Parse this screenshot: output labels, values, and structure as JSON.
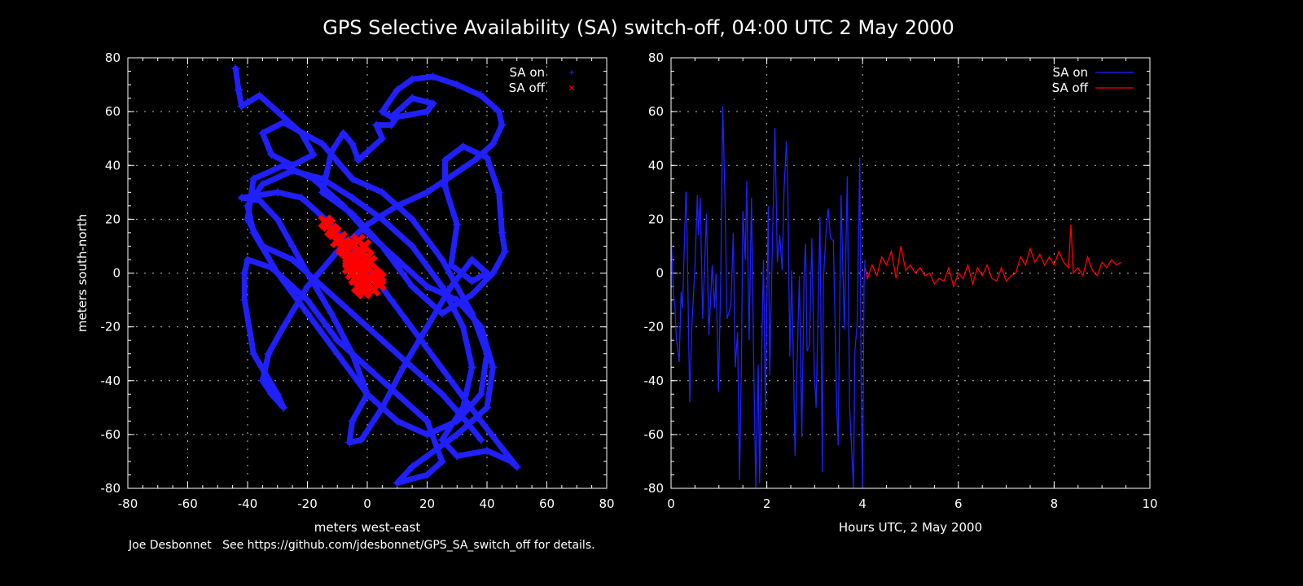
{
  "title": "GPS Selective Availability (SA) switch-off, 04:00 UTC 2 May 2000",
  "footer": "Joe Desbonnet   See https://github.com/jdesbonnet/GPS_SA_switch_off for details.",
  "colors": {
    "background": "#000000",
    "sa_on": "#2020ff",
    "sa_off": "#ff0000",
    "axes": "#ffffff"
  },
  "chart_data": [
    {
      "type": "scatter",
      "xlabel": "meters west-east",
      "ylabel": "meters south-north",
      "xlim": [
        -80,
        80
      ],
      "ylim": [
        -80,
        80
      ],
      "xticks": [
        -80,
        -60,
        -40,
        -20,
        0,
        20,
        40,
        60,
        80
      ],
      "yticks": [
        -80,
        -60,
        -40,
        -20,
        0,
        20,
        40,
        60,
        80
      ],
      "grid": true,
      "legend": "top-right",
      "series": [
        {
          "name": "SA on",
          "marker": "+",
          "color": "#2020ff",
          "points": [
            [
              -44,
              76
            ],
            [
              -43,
              68
            ],
            [
              -42,
              62
            ],
            [
              -36,
              66
            ],
            [
              -30,
              60
            ],
            [
              -22,
              52
            ],
            [
              -18,
              44
            ],
            [
              -25,
              40
            ],
            [
              -32,
              44
            ],
            [
              -35,
              52
            ],
            [
              -28,
              56
            ],
            [
              -15,
              48
            ],
            [
              -5,
              35
            ],
            [
              5,
              30
            ],
            [
              15,
              20
            ],
            [
              25,
              5
            ],
            [
              35,
              -15
            ],
            [
              40,
              -30
            ],
            [
              38,
              -45
            ],
            [
              30,
              -55
            ],
            [
              20,
              -60
            ],
            [
              10,
              -55
            ],
            [
              0,
              -45
            ],
            [
              -10,
              -30
            ],
            [
              -20,
              -15
            ],
            [
              -30,
              0
            ],
            [
              -38,
              15
            ],
            [
              -40,
              25
            ],
            [
              -35,
              33
            ],
            [
              -25,
              38
            ],
            [
              -15,
              35
            ],
            [
              -5,
              28
            ],
            [
              5,
              20
            ],
            [
              15,
              10
            ],
            [
              25,
              -5
            ],
            [
              32,
              -20
            ],
            [
              35,
              -35
            ],
            [
              32,
              -50
            ],
            [
              25,
              -62
            ],
            [
              30,
              -68
            ],
            [
              40,
              -66
            ],
            [
              48,
              -70
            ],
            [
              50,
              -72
            ],
            [
              45,
              -65
            ],
            [
              38,
              -55
            ],
            [
              28,
              -40
            ],
            [
              18,
              -25
            ],
            [
              8,
              -10
            ],
            [
              -2,
              5
            ],
            [
              -12,
              18
            ],
            [
              -22,
              28
            ],
            [
              -30,
              30
            ],
            [
              -42,
              28
            ],
            [
              -36,
              27
            ],
            [
              -30,
              20
            ],
            [
              -25,
              10
            ],
            [
              -20,
              0
            ],
            [
              -12,
              -15
            ],
            [
              -5,
              -30
            ],
            [
              0,
              -45
            ],
            [
              -5,
              -55
            ],
            [
              -6,
              -63
            ],
            [
              -2,
              -62
            ],
            [
              5,
              -50
            ],
            [
              12,
              -35
            ],
            [
              20,
              -20
            ],
            [
              28,
              -5
            ],
            [
              35,
              5
            ],
            [
              40,
              0
            ],
            [
              35,
              -3
            ],
            [
              28,
              3
            ],
            [
              30,
              18
            ],
            [
              26,
              32
            ],
            [
              26,
              42
            ],
            [
              32,
              47
            ],
            [
              40,
              43
            ],
            [
              44,
              30
            ],
            [
              45,
              15
            ],
            [
              46,
              8
            ],
            [
              42,
              0
            ],
            [
              35,
              -8
            ],
            [
              25,
              -15
            ],
            [
              15,
              -5
            ],
            [
              5,
              10
            ],
            [
              -5,
              22
            ],
            [
              -15,
              30
            ],
            [
              -12,
              45
            ],
            [
              -8,
              52
            ],
            [
              -5,
              48
            ],
            [
              -3,
              42
            ],
            [
              0,
              45
            ],
            [
              5,
              50
            ],
            [
              3,
              55
            ],
            [
              8,
              55
            ],
            [
              10,
              58
            ],
            [
              20,
              60
            ],
            [
              22,
              63
            ],
            [
              15,
              65
            ],
            [
              8,
              58
            ],
            [
              5,
              60
            ],
            [
              10,
              68
            ],
            [
              15,
              72
            ],
            [
              22,
              73
            ],
            [
              30,
              70
            ],
            [
              38,
              66
            ],
            [
              44,
              60
            ],
            [
              45,
              55
            ],
            [
              42,
              48
            ],
            [
              36,
              42
            ],
            [
              20,
              30
            ],
            [
              10,
              25
            ],
            [
              0,
              18
            ],
            [
              -10,
              8
            ],
            [
              -20,
              -5
            ],
            [
              -28,
              -20
            ],
            [
              -33,
              -30
            ],
            [
              -35,
              -40
            ],
            [
              -32,
              -45
            ],
            [
              -28,
              -50
            ],
            [
              -30,
              -45
            ],
            [
              -38,
              -30
            ],
            [
              -41,
              -10
            ],
            [
              -41,
              0
            ],
            [
              -40,
              5
            ],
            [
              -32,
              2
            ],
            [
              -20,
              -10
            ],
            [
              -10,
              -25
            ],
            [
              0,
              -35
            ],
            [
              10,
              -45
            ],
            [
              20,
              -55
            ],
            [
              25,
              -70
            ],
            [
              20,
              -75
            ],
            [
              10,
              -78
            ],
            [
              15,
              -72
            ],
            [
              30,
              -60
            ],
            [
              40,
              -50
            ],
            [
              42,
              -35
            ],
            [
              38,
              -20
            ],
            [
              30,
              -10
            ],
            [
              20,
              -5
            ],
            [
              10,
              5
            ],
            [
              0,
              15
            ],
            [
              -8,
              25
            ],
            [
              -18,
              35
            ],
            [
              -28,
              40
            ],
            [
              -38,
              35
            ],
            [
              -40,
              20
            ],
            [
              -35,
              10
            ],
            [
              -25,
              5
            ],
            [
              -15,
              -5
            ],
            [
              -5,
              -15
            ],
            [
              5,
              -25
            ],
            [
              15,
              -35
            ],
            [
              25,
              -45
            ],
            [
              33,
              -55
            ],
            [
              38,
              -62
            ]
          ]
        },
        {
          "name": "SA off",
          "marker": "x",
          "color": "#ff0000",
          "points": [
            [
              -14,
              19
            ],
            [
              -12,
              16
            ],
            [
              -10,
              12
            ],
            [
              -8,
              9
            ],
            [
              -6,
              6
            ],
            [
              -5,
              11
            ],
            [
              -3,
              12
            ],
            [
              -1,
              10
            ],
            [
              0,
              6
            ],
            [
              -4,
              3
            ],
            [
              -6,
              4
            ],
            [
              -2,
              0
            ],
            [
              1,
              -2
            ],
            [
              3,
              -1
            ],
            [
              4,
              -4
            ],
            [
              2,
              -6
            ],
            [
              -1,
              -7
            ],
            [
              -3,
              -5
            ],
            [
              -4,
              -2
            ],
            [
              -2,
              3
            ],
            [
              0,
              2
            ],
            [
              -7,
              8
            ],
            [
              -9,
              13
            ],
            [
              -11,
              15
            ],
            [
              -13,
              18
            ],
            [
              -1,
              -3
            ],
            [
              2,
              0
            ],
            [
              -5,
              0
            ],
            [
              -3,
              8
            ],
            [
              -2,
              -6
            ],
            [
              4,
              -2
            ],
            [
              1,
              4
            ],
            [
              -6,
              2
            ],
            [
              -8,
              10
            ],
            [
              -2,
              7
            ],
            [
              0,
              -4
            ]
          ]
        }
      ]
    },
    {
      "type": "line",
      "xlabel": "Hours UTC, 2 May 2000",
      "ylabel": "",
      "xlim": [
        0,
        10
      ],
      "ylim": [
        -80,
        80
      ],
      "xticks": [
        0,
        2,
        4,
        6,
        8,
        10
      ],
      "yticks": [
        -80,
        -60,
        -40,
        -20,
        0,
        20,
        40,
        60,
        80
      ],
      "grid": true,
      "legend": "top-right",
      "series": [
        {
          "name": "SA on",
          "color": "#2020ff",
          "x": [
            0,
            0.05,
            0.08,
            0.11,
            0.17,
            0.21,
            0.24,
            0.31,
            0.32,
            0.39,
            0.43,
            0.5,
            0.55,
            0.57,
            0.61,
            0.66,
            0.74,
            0.79,
            0.86,
            0.91,
            0.94,
            0.99,
            1.04,
            1.08,
            1.13,
            1.17,
            1.25,
            1.3,
            1.34,
            1.39,
            1.43,
            1.47,
            1.5,
            1.55,
            1.58,
            1.63,
            1.68,
            1.72,
            1.77,
            1.82,
            1.85,
            1.9,
            1.93,
            1.97,
            2.03,
            2.06,
            2.11,
            2.17,
            2.22,
            2.27,
            2.32,
            2.36,
            2.41,
            2.44,
            2.48,
            2.52,
            2.59,
            2.63,
            2.68,
            2.73,
            2.78,
            2.81,
            2.84,
            2.89,
            2.94,
            2.99,
            3.03,
            3.11,
            3.16,
            3.18,
            3.24,
            3.28,
            3.33,
            3.39,
            3.46,
            3.49,
            3.55,
            3.62,
            3.68,
            3.73,
            3.81,
            3.84,
            3.89,
            3.94,
            3.97,
            4.0,
            4.03,
            4.05
          ],
          "y": [
            16,
            -8,
            -12,
            -24,
            -33,
            -7,
            -13,
            30,
            30,
            -48,
            -22,
            3,
            29,
            14,
            28,
            -17,
            22,
            -23,
            3,
            -13,
            0,
            -44,
            0,
            62,
            25,
            -17,
            -12,
            15,
            -35,
            -22,
            -77,
            -33,
            23,
            5,
            34,
            -25,
            28,
            -26,
            -80,
            -34,
            -78,
            -22,
            5,
            -51,
            25,
            -38,
            5,
            54,
            4,
            14,
            1,
            31,
            49,
            30,
            -31,
            1,
            -68,
            -35,
            -1,
            -61,
            1,
            11,
            -29,
            -27,
            13,
            -36,
            -50,
            21,
            -74,
            -3,
            16,
            24,
            13,
            12,
            -49,
            -64,
            29,
            -21,
            36,
            -50,
            -80,
            -29,
            -18,
            43,
            -42,
            -80,
            -4,
            5
          ]
        },
        {
          "name": "SA off",
          "color": "#ff0000",
          "x": [
            4.05,
            4.1,
            4.2,
            4.3,
            4.4,
            4.5,
            4.6,
            4.7,
            4.8,
            4.9,
            5.0,
            5.1,
            5.2,
            5.3,
            5.4,
            5.5,
            5.6,
            5.7,
            5.8,
            5.9,
            6.0,
            6.1,
            6.2,
            6.3,
            6.4,
            6.5,
            6.6,
            6.7,
            6.8,
            6.9,
            7.0,
            7.1,
            7.2,
            7.3,
            7.4,
            7.5,
            7.6,
            7.7,
            7.8,
            7.9,
            8.0,
            8.1,
            8.2,
            8.3,
            8.35,
            8.4,
            8.5,
            8.6,
            8.7,
            8.8,
            8.9,
            9.0,
            9.1,
            9.2,
            9.3,
            9.4
          ],
          "y": [
            2,
            -2,
            3,
            -1,
            6,
            3,
            8,
            -2,
            10,
            1,
            3,
            0,
            2,
            -1,
            0,
            -4,
            -2,
            -3,
            2,
            -5,
            0,
            -2,
            3,
            -4,
            2,
            -1,
            3,
            -2,
            -3,
            2,
            -3,
            -1,
            0,
            6,
            3,
            9,
            4,
            7,
            3,
            6,
            3,
            8,
            4,
            2,
            18,
            0,
            2,
            -1,
            6,
            1,
            -1,
            4,
            2,
            5,
            3,
            4
          ]
        }
      ]
    }
  ]
}
